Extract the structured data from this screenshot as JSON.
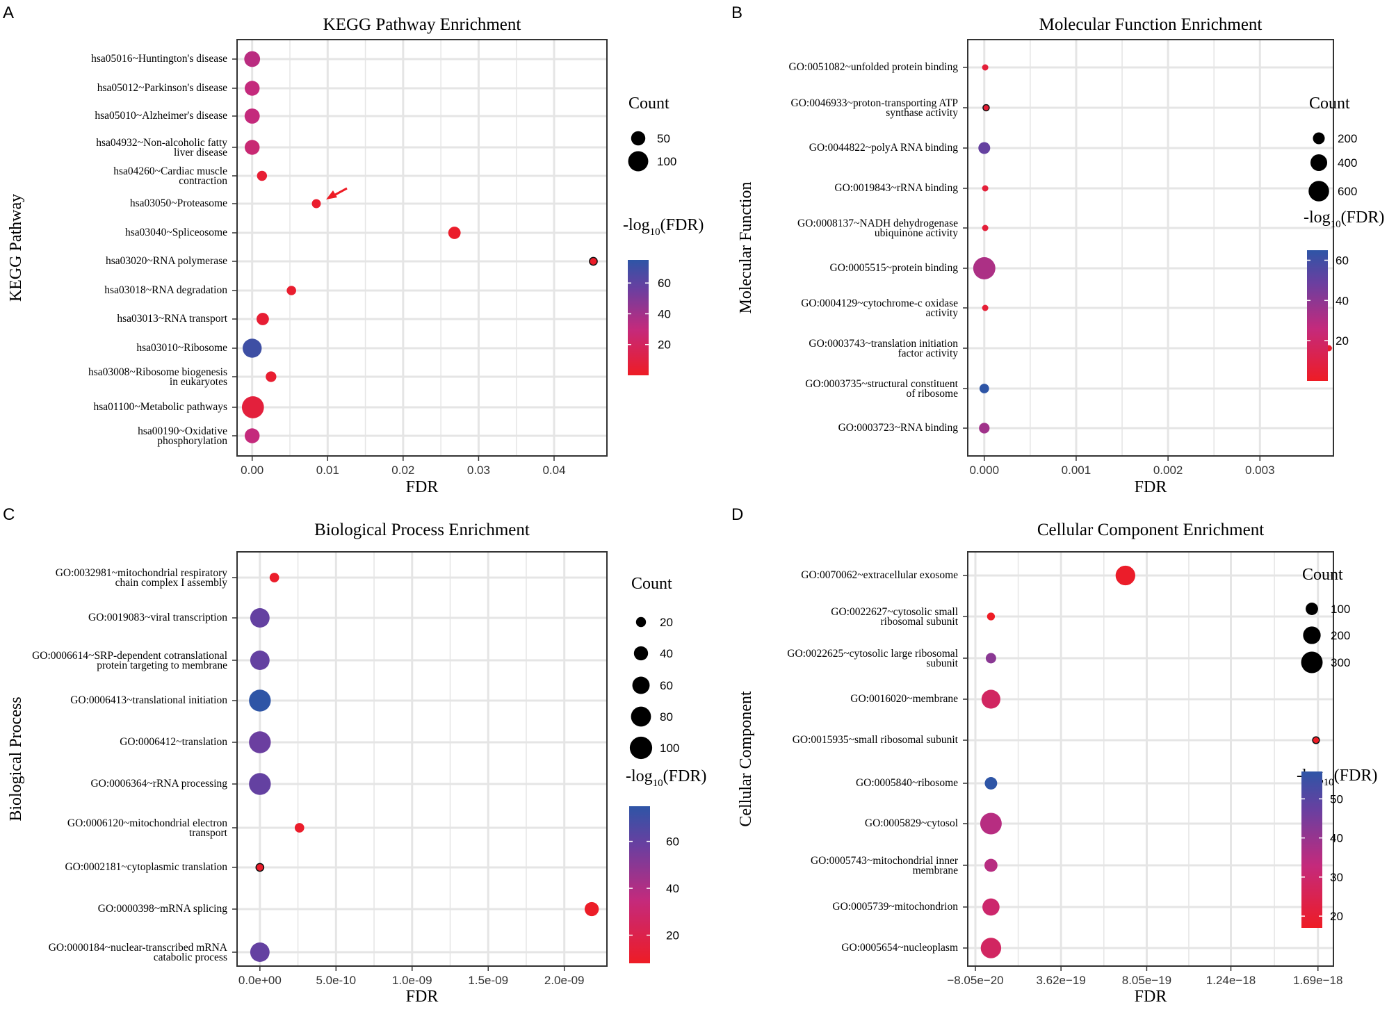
{
  "figure": {
    "panels": [
      {
        "letter": "A",
        "ytitle": "KEGG Pathway",
        "xtitle": "FDR"
      },
      {
        "letter": "B",
        "ytitle": "Molecular Function",
        "xtitle": "FDR"
      },
      {
        "letter": "C",
        "ytitle": "Biological Process",
        "xtitle": "FDR"
      },
      {
        "letter": "D",
        "ytitle": "Cellular Component",
        "xtitle": "FDR"
      }
    ],
    "legend_count_title": "Count",
    "legend_color_title_main": "-log",
    "legend_color_title_sub": "10",
    "legend_color_title_tail": "(FDR)",
    "colors": {
      "low": "#ee1c25",
      "mid": "#c42a7c",
      "mid2": "#6a3fa0",
      "high": "#2e55a6",
      "grid": "#e5e5e5",
      "panel_border": "#333333",
      "arrow": "#ee1c25"
    }
  },
  "chart_data": [
    {
      "type": "scatter",
      "title": "KEGG Pathway Enrichment",
      "xlabel": "FDR",
      "ylabel": "KEGG Pathway",
      "xlim": [
        -0.002,
        0.047
      ],
      "xticks": [
        0.0,
        0.01,
        0.02,
        0.03,
        0.04
      ],
      "xtick_labels": [
        "0.00",
        "0.01",
        "0.02",
        "0.03",
        "0.04"
      ],
      "size_legend": {
        "values": [
          50,
          100
        ],
        "labels": [
          "50",
          "100"
        ],
        "max": 130
      },
      "color_legend": {
        "range": [
          0,
          75
        ],
        "ticks": [
          20,
          40,
          60
        ],
        "labels": [
          "20",
          "40",
          "60"
        ]
      },
      "annotations": [
        {
          "type": "arrow",
          "category": "hsa03050~Proteasome",
          "fdr": 0.0085
        }
      ],
      "categories": [
        "hsa05016~Huntington's disease",
        "hsa05012~Parkinson's disease",
        "hsa05010~Alzheimer's disease",
        "hsa04932~Non-alcoholic fatty\nliver disease",
        "hsa04260~Cardiac muscle\ncontraction",
        "hsa03050~Proteasome",
        "hsa03040~Spliceosome",
        "hsa03020~RNA polymerase",
        "hsa03018~RNA degradation",
        "hsa03013~RNA transport",
        "hsa03010~Ribosome",
        "hsa03008~Ribosome biogenesis\nin eukaryotes",
        "hsa01100~Metabolic pathways",
        "hsa00190~Oxidative\nphosphorylation"
      ],
      "fdr": [
        0.0,
        0.0,
        0.0,
        0.0,
        0.0013,
        0.0085,
        0.0268,
        0.0452,
        0.0052,
        0.0014,
        0.0,
        0.0025,
        0.0001,
        0.0
      ],
      "count": [
        62,
        55,
        57,
        55,
        25,
        20,
        38,
        15,
        22,
        38,
        90,
        28,
        120,
        55
      ],
      "neglog10_fdr": [
        33,
        30,
        30,
        27,
        5,
        3,
        2,
        1.5,
        3.5,
        5,
        70,
        4,
        8,
        30
      ]
    },
    {
      "type": "scatter",
      "title": "Molecular Function Enrichment",
      "xlabel": "FDR",
      "ylabel": "Molecular Function",
      "xlim": [
        -0.00018,
        0.0038
      ],
      "xticks": [
        0.0,
        0.001,
        0.002,
        0.003
      ],
      "xtick_labels": [
        "0.000",
        "0.001",
        "0.002",
        "0.003"
      ],
      "size_legend": {
        "values": [
          200,
          400,
          600
        ],
        "labels": [
          "200",
          "400",
          "600"
        ],
        "max": 750
      },
      "color_legend": {
        "range": [
          0,
          65
        ],
        "ticks": [
          20,
          40,
          60
        ],
        "labels": [
          "20",
          "40",
          "60"
        ]
      },
      "categories": [
        "GO:0051082~unfolded protein binding",
        "GO:0046933~proton-transporting ATP\nsynthase activity",
        "GO:0044822~polyA RNA binding",
        "GO:0019843~rRNA binding",
        "GO:0008137~NADH dehydrogenase\nubiquinone activity",
        "GO:0005515~protein binding",
        "GO:0004129~cytochrome-c oxidase\nactivity",
        "GO:0003743~translation initiation\nfactor activity",
        "GO:0003735~structural constituent\nof ribosome",
        "GO:0003723~RNA binding"
      ],
      "fdr": [
        1e-05,
        2e-05,
        0.0,
        1e-05,
        1e-05,
        0.0,
        1e-05,
        0.00375,
        0.0,
        0.0
      ],
      "count": [
        30,
        28,
        200,
        25,
        30,
        700,
        25,
        30,
        130,
        160
      ],
      "neglog10_fdr": [
        6,
        5,
        50,
        6,
        6,
        32,
        5,
        2.5,
        65,
        35
      ]
    },
    {
      "type": "scatter",
      "title": "Biological Process Enrichment",
      "xlabel": "FDR",
      "ylabel": "Biological Process",
      "xlim": [
        -1.5e-10,
        2.28e-09
      ],
      "xticks": [
        0.0,
        5e-10,
        1e-09,
        1.5e-09,
        2e-09
      ],
      "xtick_labels": [
        "0.0e+00",
        "5.0e-10",
        "1.0e-09",
        "1.5e-09",
        "2.0e-09"
      ],
      "size_legend": {
        "values": [
          20,
          40,
          60,
          80,
          100
        ],
        "labels": [
          "20",
          "40",
          "60",
          "80",
          "100"
        ],
        "max": 105
      },
      "color_legend": {
        "range": [
          8,
          75
        ],
        "ticks": [
          20,
          40,
          60
        ],
        "labels": [
          "20",
          "40",
          "60"
        ]
      },
      "categories": [
        "GO:0032981~mitochondrial respiratory\nchain complex I assembly",
        "GO:0019083~viral transcription",
        "GO:0006614~SRP-dependent cotranslational\nprotein targeting to membrane",
        "GO:0006413~translational initiation",
        "GO:0006412~translation",
        "GO:0006364~rRNA processing",
        "GO:0006120~mitochondrial electron\ntransport",
        "GO:0002181~cytoplasmic translation",
        "GO:0000398~mRNA splicing",
        "GO:0000184~nuclear-transcribed mRNA\ncatabolic process"
      ],
      "fdr": [
        9.5e-11,
        0.0,
        0.0,
        0.0,
        0.0,
        0.0,
        2.6e-10,
        0.0,
        2.18e-09,
        0.0
      ],
      "count": [
        18,
        75,
        75,
        95,
        95,
        95,
        18,
        12,
        40,
        75
      ],
      "neglog10_fdr": [
        10,
        60,
        60,
        75,
        58,
        60,
        10,
        10,
        9,
        60
      ]
    },
    {
      "type": "scatter",
      "title": "Cellular Component Enrichment",
      "xlabel": "FDR",
      "ylabel": "Cellular Component",
      "xlim": [
        -1.2e-19,
        1.77e-18
      ],
      "xticks": [
        -8.05e-20,
        3.62e-19,
        8.05e-19,
        1.24e-18,
        1.69e-18
      ],
      "xtick_labels": [
        "−8.05e−20",
        "3.62e−19",
        "8.05e−19",
        "1.24e−18",
        "1.69e−18"
      ],
      "size_legend": {
        "values": [
          100,
          200,
          300
        ],
        "labels": [
          "100",
          "200",
          "300"
        ],
        "max": 340
      },
      "color_legend": {
        "range": [
          17,
          57
        ],
        "ticks": [
          20,
          30,
          40,
          50
        ],
        "labels": [
          "20",
          "30",
          "40",
          "50"
        ]
      },
      "categories": [
        "GO:0070062~extracellular exosome",
        "GO:0022627~cytosolic small\nribosomal subunit",
        "GO:0022625~cytosolic large ribosomal\nsubunit",
        "GO:0016020~membrane",
        "GO:0015935~small ribosomal subunit",
        "GO:0005840~ribosome",
        "GO:0005829~cytosol",
        "GO:0005743~mitochondrial inner\nmembrane",
        "GO:0005739~mitochondrion",
        "GO:0005654~nucleoplasm"
      ],
      "fdr": [
        6.95e-19,
        0.0,
        0.0,
        0.0,
        1.68e-18,
        0.0,
        0.0,
        0.0,
        0.0,
        0.0
      ],
      "count": [
        250,
        40,
        70,
        230,
        30,
        100,
        300,
        110,
        190,
        270
      ],
      "neglog10_fdr": [
        18,
        17,
        42,
        28,
        17,
        57,
        35,
        35,
        30,
        28
      ]
    }
  ]
}
